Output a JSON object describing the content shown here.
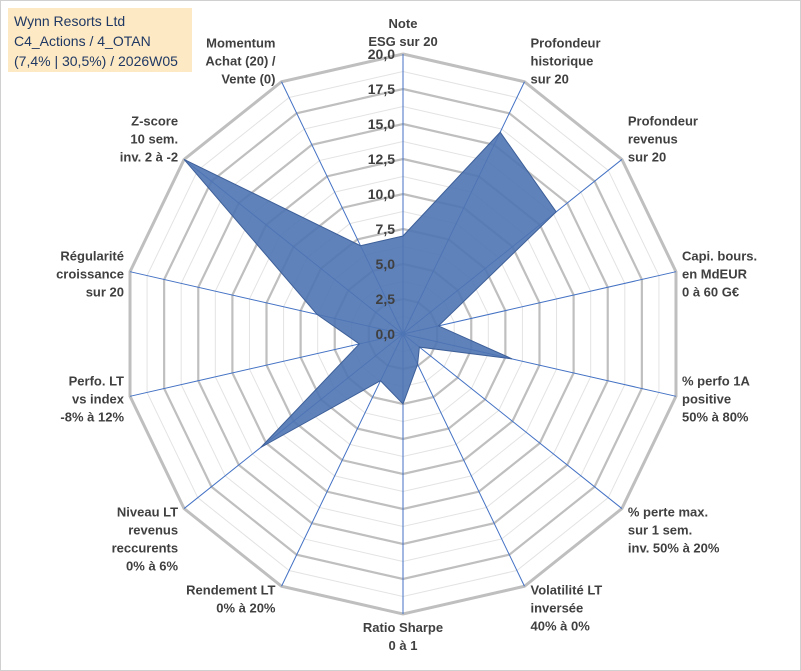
{
  "chart_data": {
    "type": "radar",
    "title_lines": [
      "Wynn Resorts Ltd",
      "C4_Actions / 4_OTAN",
      "(7,4% | 30,5%) / 2026W05"
    ],
    "r_range": [
      0,
      20
    ],
    "r_ticks": [
      "0,0",
      "2,5",
      "5,0",
      "7,5",
      "10,0",
      "12,5",
      "15,0",
      "17,5",
      "20,0"
    ],
    "grid": true,
    "fill_color": "#4f74b3",
    "grid_color": "#bfbfbf",
    "axis_line_color": "#4472c4",
    "axes": [
      {
        "label": [
          "Note",
          "ESG sur 20"
        ],
        "value": 7.0
      },
      {
        "label": [
          "Profondeur",
          "historique",
          "sur 20"
        ],
        "value": 16.0
      },
      {
        "label": [
          "Profondeur",
          "revenus",
          "sur 20"
        ],
        "value": 14.0
      },
      {
        "label": [
          "Capi. bours.",
          "en MdEUR",
          "0 à 60 G€"
        ],
        "value": 2.6
      },
      {
        "label": [
          "% perfo 1A",
          "positive",
          "50% à 80%"
        ],
        "value": 8.0
      },
      {
        "label": [
          "% perte max.",
          "sur 1 sem.",
          "inv. 50% à 20%"
        ],
        "value": 1.5
      },
      {
        "label": [
          "Volatilité LT",
          "inversée",
          "40% à 0%"
        ],
        "value": 2.4
      },
      {
        "label": [
          "Ratio Sharpe",
          "0 à 1"
        ],
        "value": 5.0
      },
      {
        "label": [
          "Rendement LT",
          "0% à 20%"
        ],
        "value": 3.7
      },
      {
        "label": [
          "Niveau LT",
          "revenus",
          "reccurents",
          "0% à 6%"
        ],
        "value": 13.0
      },
      {
        "label": [
          "Perfo. LT",
          "vs index",
          "-8% à 12%"
        ],
        "value": 3.2
      },
      {
        "label": [
          "Régularité",
          "croissance",
          "sur 20"
        ],
        "value": 6.3
      },
      {
        "label": [
          "Z-score",
          "10 sem.",
          "inv. 2 à -2"
        ],
        "value": 20.0
      },
      {
        "label": [
          "Momentum",
          "Achat (20) /",
          "Vente (0)"
        ],
        "value": 7.0
      }
    ]
  }
}
